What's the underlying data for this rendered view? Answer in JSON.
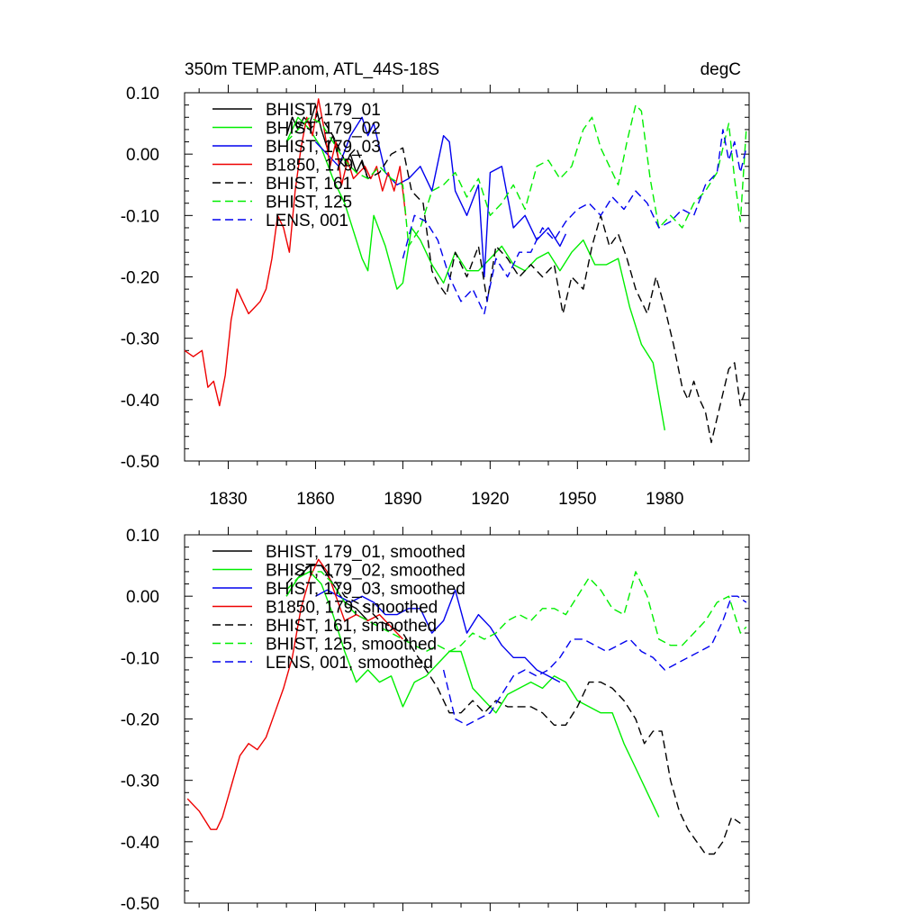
{
  "chart_data": [
    {
      "type": "line",
      "title": "350m TEMP.anom, ATL_44S-18S",
      "units": "degC",
      "xlim": [
        1815,
        2009
      ],
      "ylim": [
        -0.5,
        0.1
      ],
      "yticks": [
        "0.10",
        "0.00",
        "-0.10",
        "-0.20",
        "-0.30",
        "-0.40",
        "-0.50"
      ],
      "xticks": [
        "1830",
        "1860",
        "1890",
        "1920",
        "1950",
        "1980"
      ],
      "legend_position": "top-left",
      "series": [
        {
          "name": "BHIST, 179_01",
          "color": "#000000",
          "dash": "solid",
          "x": [
            1850,
            1852,
            1854,
            1856,
            1858,
            1860,
            1862,
            1864,
            1866,
            1868,
            1870,
            1872,
            1874,
            1876,
            1878
          ],
          "y": [
            0.03,
            0.06,
            0.04,
            0.06,
            0.05,
            0.08,
            0.04,
            0.01,
            0.03,
            -0.01,
            -0.02,
            0.0,
            -0.03,
            -0.01,
            -0.04
          ]
        },
        {
          "name": "BHIST, 179_02",
          "color": "#00ee00",
          "dash": "solid",
          "x": [
            1850,
            1854,
            1858,
            1862,
            1866,
            1870,
            1874,
            1876,
            1878,
            1880,
            1884,
            1888,
            1890,
            1893,
            1896,
            1900,
            1904,
            1908,
            1912,
            1916,
            1920,
            1924,
            1928,
            1932,
            1936,
            1940,
            1944,
            1948,
            1952,
            1956,
            1960,
            1964,
            1968,
            1972,
            1976,
            1980
          ],
          "y": [
            0.02,
            0.06,
            0.04,
            0.01,
            -0.04,
            -0.08,
            -0.14,
            -0.17,
            -0.19,
            -0.1,
            -0.15,
            -0.22,
            -0.21,
            -0.12,
            -0.14,
            -0.18,
            -0.21,
            -0.16,
            -0.19,
            -0.19,
            -0.17,
            -0.15,
            -0.18,
            -0.19,
            -0.17,
            -0.16,
            -0.19,
            -0.16,
            -0.14,
            -0.18,
            -0.18,
            -0.17,
            -0.25,
            -0.31,
            -0.34,
            -0.45
          ]
        },
        {
          "name": "BHIST, 179_03",
          "color": "#0000ee",
          "dash": "solid",
          "x": [
            1860,
            1864,
            1868,
            1872,
            1876,
            1878,
            1880,
            1884,
            1888,
            1892,
            1896,
            1900,
            1904,
            1906,
            1908,
            1912,
            1916,
            1918,
            1920,
            1924,
            1928,
            1932,
            1936,
            1940,
            1944,
            1946
          ],
          "y": [
            0.02,
            0.0,
            -0.02,
            0.03,
            0.06,
            0.03,
            0.05,
            -0.03,
            -0.05,
            -0.04,
            -0.02,
            -0.06,
            0.03,
            0.02,
            -0.06,
            -0.1,
            -0.05,
            -0.2,
            -0.03,
            -0.02,
            -0.12,
            -0.1,
            -0.14,
            -0.12,
            -0.15,
            -0.13
          ]
        },
        {
          "name": "B1850, 179",
          "color": "#ee0000",
          "dash": "solid",
          "x": [
            1815,
            1818,
            1821,
            1823,
            1825,
            1827,
            1829,
            1831,
            1833,
            1835,
            1837,
            1839,
            1841,
            1843,
            1845,
            1847,
            1849,
            1851,
            1853,
            1855,
            1857,
            1859,
            1861,
            1863,
            1865,
            1867,
            1869,
            1871,
            1873,
            1875,
            1877,
            1879,
            1881,
            1883,
            1885,
            1887,
            1889,
            1891
          ],
          "y": [
            -0.32,
            -0.33,
            -0.32,
            -0.38,
            -0.37,
            -0.41,
            -0.36,
            -0.27,
            -0.22,
            -0.24,
            -0.26,
            -0.25,
            -0.24,
            -0.22,
            -0.17,
            -0.1,
            -0.12,
            -0.16,
            -0.06,
            0.01,
            0.06,
            0.03,
            0.09,
            0.04,
            -0.02,
            0.02,
            -0.05,
            -0.01,
            -0.04,
            -0.03,
            -0.02,
            -0.04,
            -0.02,
            -0.06,
            -0.03,
            -0.06,
            -0.02,
            -0.1
          ]
        },
        {
          "name": "BHIST, 161",
          "color": "#000000",
          "dash": "dashed",
          "x": [
            1850,
            1852,
            1854,
            1858,
            1862,
            1866,
            1870,
            1874,
            1878,
            1882,
            1886,
            1890,
            1893,
            1897,
            1900,
            1902,
            1905,
            1908,
            1912,
            1916,
            1919,
            1922,
            1926,
            1930,
            1934,
            1938,
            1942,
            1945,
            1948,
            1952,
            1955,
            1958,
            1961,
            1964,
            1967,
            1970,
            1974,
            1977,
            1980,
            1983,
            1986,
            1988,
            1990,
            1992,
            1994,
            1996,
            1998,
            2000,
            2002,
            2004,
            2006,
            2008
          ],
          "y": [
            0.03,
            0.06,
            0.05,
            0.04,
            0.06,
            0.03,
            -0.01,
            0.01,
            -0.04,
            -0.03,
            0.0,
            0.01,
            -0.06,
            -0.08,
            -0.19,
            -0.21,
            -0.23,
            -0.16,
            -0.2,
            -0.15,
            -0.24,
            -0.15,
            -0.17,
            -0.2,
            -0.18,
            -0.2,
            -0.18,
            -0.26,
            -0.2,
            -0.22,
            -0.15,
            -0.1,
            -0.15,
            -0.13,
            -0.17,
            -0.22,
            -0.26,
            -0.2,
            -0.25,
            -0.31,
            -0.38,
            -0.4,
            -0.37,
            -0.4,
            -0.42,
            -0.47,
            -0.43,
            -0.39,
            -0.35,
            -0.34,
            -0.41,
            -0.38
          ]
        },
        {
          "name": "BHIST, 125",
          "color": "#00ee00",
          "dash": "dashed",
          "x": [
            1850,
            1854,
            1858,
            1862,
            1866,
            1870,
            1874,
            1878,
            1882,
            1886,
            1890,
            1892,
            1896,
            1900,
            1904,
            1908,
            1912,
            1916,
            1920,
            1924,
            1928,
            1932,
            1936,
            1940,
            1944,
            1948,
            1952,
            1955,
            1958,
            1961,
            1964,
            1967,
            1970,
            1972,
            1975,
            1978,
            1982,
            1986,
            1990,
            1994,
            1998,
            2002,
            2004,
            2006,
            2008
          ],
          "y": [
            0.02,
            0.04,
            0.06,
            0.05,
            0.02,
            -0.01,
            -0.03,
            -0.04,
            -0.02,
            -0.04,
            -0.05,
            -0.15,
            -0.12,
            -0.06,
            -0.05,
            -0.03,
            -0.07,
            -0.04,
            -0.1,
            -0.08,
            -0.05,
            -0.09,
            -0.02,
            -0.01,
            -0.04,
            -0.02,
            0.04,
            0.06,
            0.01,
            -0.02,
            -0.05,
            0.02,
            0.08,
            0.07,
            -0.04,
            -0.12,
            -0.1,
            -0.12,
            -0.08,
            -0.06,
            -0.03,
            0.05,
            -0.04,
            -0.11,
            0.04
          ]
        },
        {
          "name": "LENS, 001",
          "color": "#0000ee",
          "dash": "dashed",
          "x": [
            1890,
            1894,
            1898,
            1902,
            1906,
            1910,
            1914,
            1918,
            1922,
            1926,
            1930,
            1934,
            1938,
            1942,
            1946,
            1950,
            1954,
            1958,
            1962,
            1966,
            1970,
            1974,
            1978,
            1982,
            1986,
            1990,
            1994,
            1998,
            2000,
            2002,
            2004,
            2006,
            2008
          ],
          "y": [
            -0.17,
            -0.1,
            -0.11,
            -0.14,
            -0.2,
            -0.24,
            -0.22,
            -0.26,
            -0.17,
            -0.2,
            -0.16,
            -0.16,
            -0.12,
            -0.14,
            -0.11,
            -0.09,
            -0.08,
            -0.1,
            -0.07,
            -0.09,
            -0.06,
            -0.08,
            -0.12,
            -0.11,
            -0.09,
            -0.1,
            -0.05,
            -0.03,
            0.04,
            -0.01,
            0.02,
            -0.03,
            0.01
          ]
        }
      ]
    },
    {
      "type": "line",
      "ylim": [
        -0.5,
        0.1
      ],
      "xlim": [
        1815,
        2009
      ],
      "yticks": [
        "0.10",
        "0.00",
        "-0.10",
        "-0.20",
        "-0.30",
        "-0.40",
        "-0.50"
      ],
      "legend_position": "top-left",
      "series": [
        {
          "name": "BHIST, 179_01, smoothed",
          "color": "#000000",
          "dash": "solid",
          "x": [
            1850,
            1854,
            1858,
            1862,
            1866,
            1870,
            1874,
            1878
          ],
          "y": [
            0.0,
            0.03,
            0.05,
            0.05,
            0.02,
            -0.01,
            -0.02,
            -0.04
          ]
        },
        {
          "name": "BHIST, 179_02, smoothed",
          "color": "#00ee00",
          "dash": "solid",
          "x": [
            1850,
            1854,
            1858,
            1862,
            1866,
            1870,
            1874,
            1878,
            1882,
            1886,
            1890,
            1894,
            1898,
            1902,
            1906,
            1910,
            1914,
            1918,
            1922,
            1926,
            1930,
            1934,
            1938,
            1942,
            1946,
            1950,
            1954,
            1958,
            1962,
            1966,
            1970,
            1974,
            1978
          ],
          "y": [
            0.0,
            0.03,
            0.04,
            0.02,
            -0.03,
            -0.09,
            -0.14,
            -0.12,
            -0.14,
            -0.13,
            -0.18,
            -0.14,
            -0.13,
            -0.11,
            -0.09,
            -0.09,
            -0.15,
            -0.17,
            -0.19,
            -0.16,
            -0.15,
            -0.14,
            -0.15,
            -0.13,
            -0.14,
            -0.17,
            -0.18,
            -0.19,
            -0.19,
            -0.24,
            -0.28,
            -0.32,
            -0.36
          ]
        },
        {
          "name": "BHIST, 179_03, smoothed",
          "color": "#0000ee",
          "dash": "solid",
          "x": [
            1860,
            1864,
            1868,
            1872,
            1876,
            1880,
            1884,
            1888,
            1892,
            1896,
            1900,
            1904,
            1908,
            1912,
            1916,
            1920,
            1924,
            1928,
            1932,
            1936,
            1940,
            1944
          ],
          "y": [
            0.0,
            0.01,
            0.0,
            -0.01,
            0.0,
            -0.01,
            -0.03,
            -0.03,
            -0.02,
            -0.02,
            -0.06,
            -0.04,
            0.01,
            -0.06,
            -0.03,
            -0.05,
            -0.08,
            -0.1,
            -0.1,
            -0.12,
            -0.13,
            -0.14
          ]
        },
        {
          "name": "B1850, 179, smoothed",
          "color": "#ee0000",
          "dash": "solid",
          "x": [
            1816,
            1820,
            1824,
            1826,
            1828,
            1831,
            1834,
            1837,
            1840,
            1843,
            1846,
            1849,
            1852,
            1855,
            1858,
            1861,
            1864,
            1867,
            1870,
            1874,
            1878,
            1882,
            1886,
            1890
          ],
          "y": [
            -0.33,
            -0.35,
            -0.38,
            -0.38,
            -0.36,
            -0.31,
            -0.26,
            -0.24,
            -0.25,
            -0.23,
            -0.19,
            -0.15,
            -0.1,
            -0.02,
            0.03,
            0.06,
            0.04,
            0.0,
            -0.04,
            -0.03,
            -0.04,
            -0.03,
            -0.05,
            -0.07
          ]
        },
        {
          "name": "BHIST, 161, smoothed",
          "color": "#000000",
          "dash": "dashed",
          "x": [
            1850,
            1854,
            1858,
            1862,
            1866,
            1870,
            1874,
            1878,
            1882,
            1886,
            1890,
            1894,
            1898,
            1902,
            1906,
            1910,
            1914,
            1918,
            1922,
            1926,
            1930,
            1934,
            1938,
            1942,
            1946,
            1950,
            1954,
            1958,
            1962,
            1966,
            1970,
            1973,
            1976,
            1979,
            1982,
            1985,
            1988,
            1991,
            1994,
            1997,
            2000,
            2003,
            2006
          ],
          "y": [
            0.02,
            0.04,
            0.05,
            0.05,
            0.03,
            0.0,
            -0.01,
            -0.02,
            -0.04,
            -0.05,
            -0.06,
            -0.09,
            -0.12,
            -0.15,
            -0.19,
            -0.19,
            -0.17,
            -0.19,
            -0.17,
            -0.18,
            -0.18,
            -0.18,
            -0.19,
            -0.21,
            -0.21,
            -0.18,
            -0.14,
            -0.14,
            -0.15,
            -0.17,
            -0.2,
            -0.24,
            -0.22,
            -0.22,
            -0.3,
            -0.35,
            -0.38,
            -0.4,
            -0.42,
            -0.42,
            -0.4,
            -0.36,
            -0.37
          ]
        },
        {
          "name": "BHIST, 125, smoothed",
          "color": "#00ee00",
          "dash": "dashed",
          "x": [
            1850,
            1854,
            1858,
            1862,
            1866,
            1870,
            1874,
            1878,
            1882,
            1886,
            1890,
            1894,
            1898,
            1902,
            1906,
            1910,
            1914,
            1918,
            1922,
            1926,
            1930,
            1934,
            1938,
            1942,
            1946,
            1950,
            1954,
            1958,
            1962,
            1966,
            1970,
            1974,
            1978,
            1982,
            1986,
            1990,
            1994,
            1998,
            2002,
            2006,
            2008
          ],
          "y": [
            0.01,
            0.03,
            0.04,
            0.04,
            0.02,
            -0.01,
            -0.03,
            -0.04,
            -0.05,
            -0.06,
            -0.07,
            -0.08,
            -0.09,
            -0.08,
            -0.09,
            -0.08,
            -0.06,
            -0.07,
            -0.06,
            -0.04,
            -0.03,
            -0.04,
            -0.02,
            -0.02,
            -0.03,
            0.0,
            0.03,
            0.01,
            -0.02,
            -0.03,
            0.04,
            0.0,
            -0.07,
            -0.08,
            -0.08,
            -0.06,
            -0.04,
            -0.01,
            0.0,
            -0.06,
            -0.05
          ]
        },
        {
          "name": "LENS, 001, smoothed",
          "color": "#0000ee",
          "dash": "dashed",
          "x": [
            1904,
            1908,
            1912,
            1916,
            1920,
            1924,
            1928,
            1932,
            1936,
            1940,
            1944,
            1948,
            1952,
            1956,
            1960,
            1964,
            1968,
            1972,
            1976,
            1980,
            1984,
            1988,
            1992,
            1996,
            2000,
            2003,
            2005,
            2008
          ],
          "y": [
            -0.12,
            -0.2,
            -0.21,
            -0.2,
            -0.19,
            -0.16,
            -0.13,
            -0.12,
            -0.13,
            -0.12,
            -0.1,
            -0.07,
            -0.07,
            -0.08,
            -0.09,
            -0.08,
            -0.07,
            -0.09,
            -0.1,
            -0.12,
            -0.11,
            -0.1,
            -0.09,
            -0.08,
            -0.04,
            0.0,
            0.0,
            -0.01
          ]
        }
      ]
    }
  ]
}
